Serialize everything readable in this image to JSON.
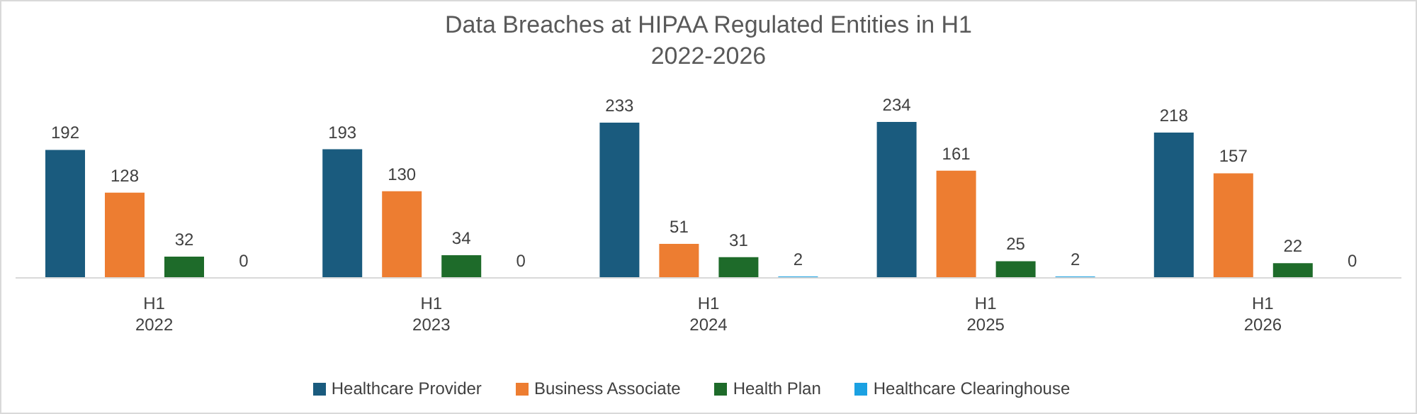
{
  "chart_data": {
    "type": "bar",
    "title": "Data Breaches at HIPAA Regulated Entities in H1\n2022-2026",
    "categories": [
      "H1\n2022",
      "H1\n2023",
      "H1\n2024",
      "H1\n2025",
      "H1\n2026"
    ],
    "series": [
      {
        "name": "Healthcare Provider",
        "color": "#1a5b7e",
        "values": [
          192,
          193,
          233,
          234,
          218
        ]
      },
      {
        "name": "Business Associate",
        "color": "#ed7d31",
        "values": [
          128,
          130,
          51,
          161,
          157
        ]
      },
      {
        "name": "Health Plan",
        "color": "#1e6b2a",
        "values": [
          32,
          34,
          31,
          25,
          22
        ]
      },
      {
        "name": "Healthcare Clearinghouse",
        "color": "#1ba1e2",
        "values": [
          0,
          0,
          2,
          2,
          0
        ]
      }
    ],
    "data_labels": true,
    "grid": false,
    "legend": "bottom"
  }
}
